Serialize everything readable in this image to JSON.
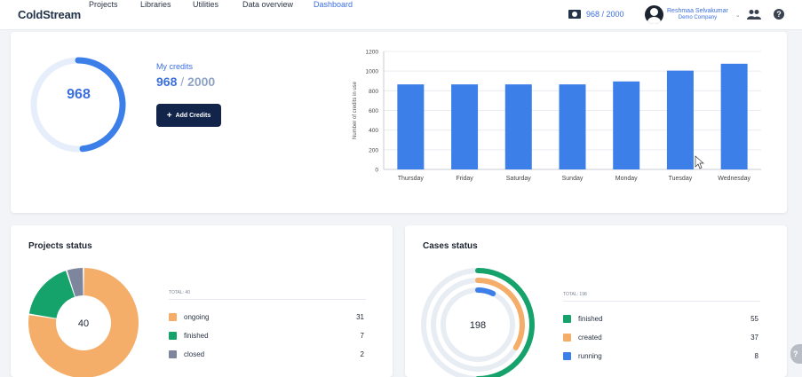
{
  "header": {
    "logo_text": "ColdStream",
    "nav": [
      {
        "label": "Projects",
        "active": false
      },
      {
        "label": "Libraries",
        "active": false
      },
      {
        "label": "Utilities",
        "active": false
      },
      {
        "label": "Data overview",
        "active": false
      },
      {
        "label": "Dashboard",
        "active": true
      }
    ],
    "credits_summary": "968 / 2000",
    "user_name": "Reshmaa Selvakumar",
    "user_company": "Demo Company"
  },
  "credits": {
    "used": 968,
    "total": 2000,
    "ring_value": "968",
    "label": "My credits",
    "value_used": "968",
    "value_separator": "/",
    "value_total": "2000",
    "add_button_label": "Add Credits"
  },
  "chart_data": {
    "type": "bar",
    "categories": [
      "Thursday",
      "Friday",
      "Saturday",
      "Sunday",
      "Monday",
      "Tuesday",
      "Wednesday"
    ],
    "values": [
      865,
      865,
      865,
      865,
      895,
      1005,
      1075
    ],
    "ylabel": "Number of credits in use",
    "xlabel": "",
    "ylim": [
      0,
      1200
    ],
    "yticks": [
      0,
      200,
      400,
      600,
      800,
      1000,
      1200
    ],
    "color": "#3d7fe8",
    "grid": true
  },
  "projects_status": {
    "title": "Projects status",
    "total_label": "TOTAL: 40",
    "center_value": "40",
    "items": [
      {
        "label": "ongoing",
        "value": 31,
        "value_text": "31",
        "color": "#f4ae6a"
      },
      {
        "label": "finished",
        "value": 7,
        "value_text": "7",
        "color": "#16a26b"
      },
      {
        "label": "closed",
        "value": 2,
        "value_text": "2",
        "color": "#7d869c"
      }
    ]
  },
  "cases_status": {
    "title": "Cases status",
    "total_label": "TOTAL: 198",
    "center_value": "198",
    "items": [
      {
        "label": "finished",
        "value": 55,
        "value_text": "55",
        "color": "#16a26b"
      },
      {
        "label": "created",
        "value": 37,
        "value_text": "37",
        "color": "#f4ae6a"
      },
      {
        "label": "running",
        "value": 8,
        "value_text": "8",
        "color": "#3d7fe8"
      }
    ]
  },
  "colors": {
    "accent": "#3b6fe0",
    "button_dark": "#12244a",
    "ring_track": "#e6eefb"
  }
}
